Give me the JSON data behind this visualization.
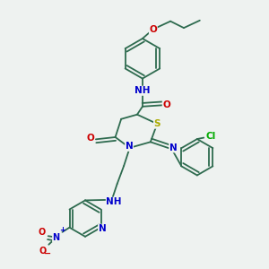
{
  "bg_color": "#eef2f0",
  "bond_color": "#2e6b4f",
  "bond_width": 1.3,
  "atom_colors": {
    "N": "#0000cc",
    "O": "#cc0000",
    "S": "#aaaa00",
    "Cl": "#00aa00",
    "C": "#2e6b4f",
    "H": "#666666"
  },
  "font_size": 7.5
}
